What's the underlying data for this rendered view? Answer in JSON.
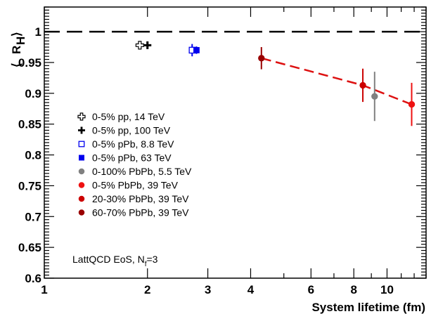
{
  "chart_data": {
    "type": "scatter",
    "title": "",
    "xlabel": "System lifetime (fm)",
    "ylabel_main": "R",
    "ylabel_sub": "H",
    "xscale": "log",
    "xlim": [
      1,
      13
    ],
    "ylim": [
      0.6,
      1.04
    ],
    "x_tick_labels": [
      {
        "value": 1,
        "label": "1"
      },
      {
        "value": 2,
        "label": "2"
      },
      {
        "value": 3,
        "label": "3"
      },
      {
        "value": 4,
        "label": "4"
      },
      {
        "value": 6,
        "label": "6"
      },
      {
        "value": 8,
        "label": "8"
      },
      {
        "value": 10,
        "label": "10"
      }
    ],
    "y_tick_labels": [
      {
        "value": 0.6,
        "label": "0.6"
      },
      {
        "value": 0.65,
        "label": "0.65"
      },
      {
        "value": 0.7,
        "label": "0.7"
      },
      {
        "value": 0.75,
        "label": "0.75"
      },
      {
        "value": 0.8,
        "label": "0.8"
      },
      {
        "value": 0.85,
        "label": "0.85"
      },
      {
        "value": 0.9,
        "label": "0.9"
      },
      {
        "value": 0.95,
        "label": "0.95"
      },
      {
        "value": 1,
        "label": "1"
      }
    ],
    "reference_line": {
      "y": 1.0,
      "style": "dashed",
      "color": "#000000"
    },
    "series": [
      {
        "name": "0-5% pp, 14 TeV",
        "marker": "open-cross",
        "color": "#000000",
        "points": [
          {
            "x": 1.9,
            "y": 0.978,
            "err": 0.003
          }
        ]
      },
      {
        "name": "0-5% pp, 100 TeV",
        "marker": "cross",
        "color": "#000000",
        "points": [
          {
            "x": 2.0,
            "y": 0.978,
            "err": 0.003
          }
        ]
      },
      {
        "name": "0-5% pPb, 8.8 TeV",
        "marker": "open-square",
        "color": "#0000ee",
        "points": [
          {
            "x": 2.7,
            "y": 0.97,
            "err": 0.01
          }
        ]
      },
      {
        "name": "0-5% pPb, 63 TeV",
        "marker": "square",
        "color": "#0000ee",
        "points": [
          {
            "x": 2.78,
            "y": 0.97,
            "err": 0.006
          }
        ]
      },
      {
        "name": "0-100% PbPb, 5.5 TeV",
        "marker": "circle",
        "color": "#808080",
        "points": [
          {
            "x": 9.2,
            "y": 0.895,
            "err": 0.04
          }
        ]
      },
      {
        "name": "0-5% PbPb, 39 TeV",
        "marker": "circle",
        "color": "#ee1111",
        "points": [
          {
            "x": 11.8,
            "y": 0.882,
            "err": 0.035
          }
        ]
      },
      {
        "name": "20-30% PbPb, 39 TeV",
        "marker": "circle",
        "color": "#cc0000",
        "points": [
          {
            "x": 8.5,
            "y": 0.913,
            "err": 0.027
          }
        ]
      },
      {
        "name": "60-70% PbPb, 39 TeV",
        "marker": "circle",
        "color": "#990000",
        "points": [
          {
            "x": 4.3,
            "y": 0.957,
            "err": 0.018
          }
        ]
      }
    ],
    "trend_line": {
      "style": "dashed",
      "color": "#dd1111",
      "points": [
        {
          "x": 4.3,
          "y": 0.957
        },
        {
          "x": 8.5,
          "y": 0.913
        },
        {
          "x": 11.8,
          "y": 0.882
        }
      ]
    },
    "note": {
      "prefix": "LattQCD EoS, N",
      "sub": "f",
      "suffix": "=3"
    },
    "legend_position": "left"
  }
}
